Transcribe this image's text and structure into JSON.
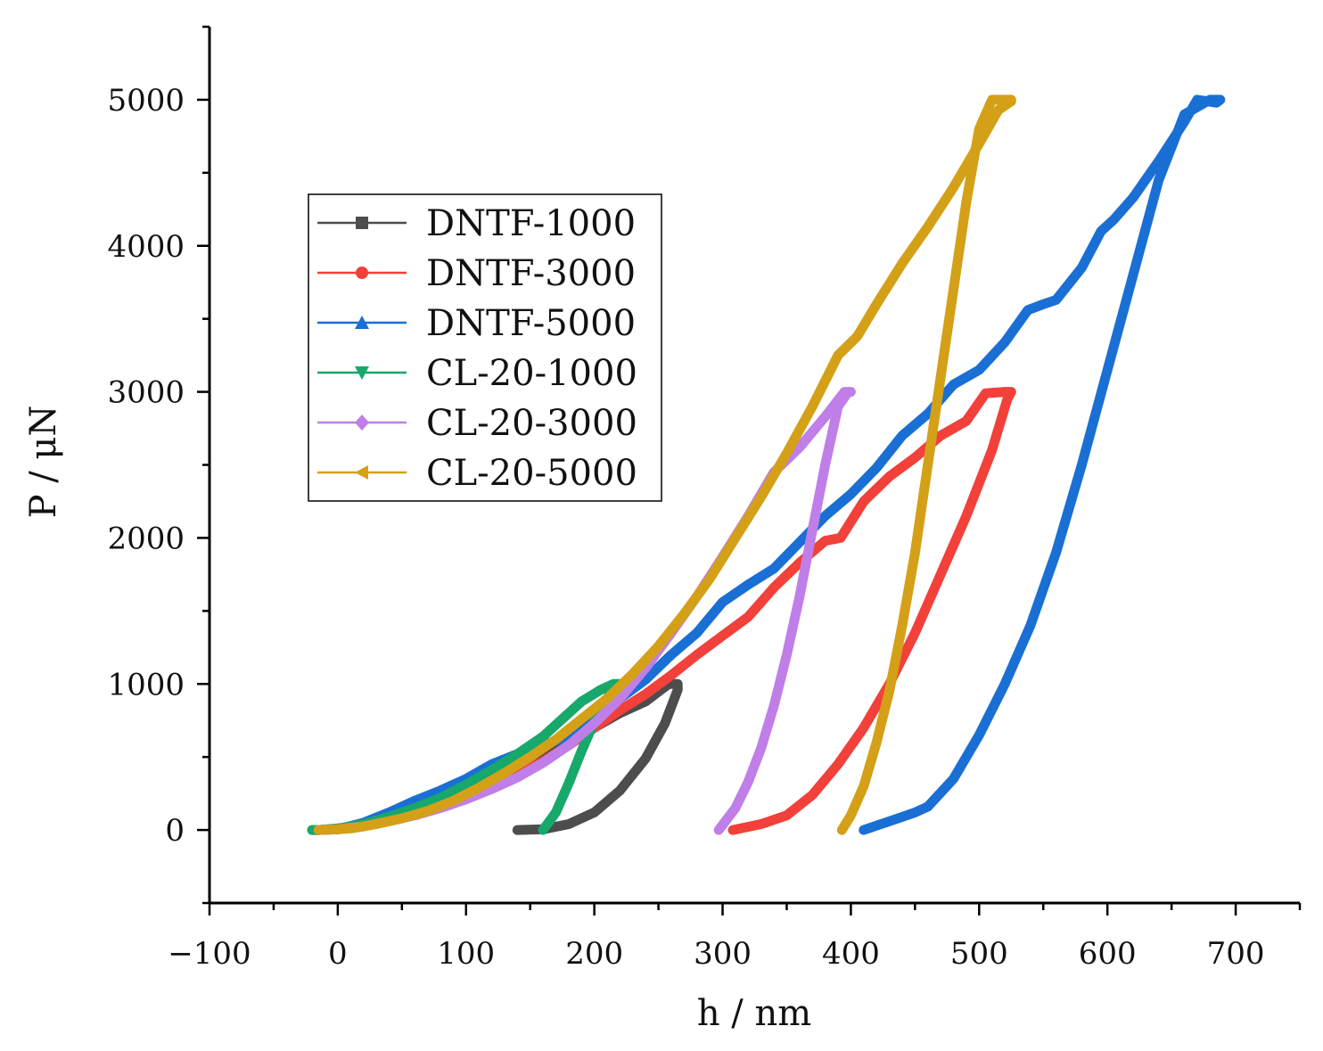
{
  "chart_data": {
    "type": "line",
    "xlabel": "h  /  nm",
    "ylabel": "P  /  μN",
    "xlim": [
      -100,
      750
    ],
    "ylim": [
      -500,
      5500
    ],
    "xticks": [
      -100,
      0,
      100,
      200,
      300,
      400,
      500,
      600,
      700
    ],
    "yticks": [
      0,
      1000,
      2000,
      3000,
      4000,
      5000
    ],
    "grid": false,
    "legend_position": "upper-left",
    "series": [
      {
        "name": "DNTF-1000",
        "color": "#4d4d4d",
        "marker": "square",
        "x": [
          140,
          160,
          180,
          200,
          220,
          240,
          255,
          265,
          265,
          258,
          240,
          220,
          200,
          180,
          160,
          140,
          120,
          100,
          80,
          60,
          40,
          20,
          0,
          -15,
          -20
        ],
        "y": [
          0,
          5,
          40,
          120,
          270,
          490,
          730,
          960,
          1000,
          1000,
          880,
          800,
          700,
          610,
          500,
          410,
          320,
          240,
          170,
          115,
          70,
          30,
          10,
          0,
          0
        ]
      },
      {
        "name": "DNTF-3000",
        "color": "#f2403a",
        "marker": "circle",
        "x": [
          308,
          330,
          350,
          370,
          390,
          410,
          430,
          450,
          470,
          490,
          510,
          522,
          525,
          520,
          505,
          490,
          470,
          450,
          430,
          410,
          392,
          380,
          360,
          340,
          320,
          300,
          280,
          260,
          240,
          220,
          200,
          180,
          160,
          140,
          120,
          100,
          80,
          60,
          40,
          20,
          0,
          -15
        ],
        "y": [
          0,
          40,
          100,
          240,
          450,
          700,
          1000,
          1350,
          1750,
          2150,
          2600,
          2950,
          3000,
          3000,
          2990,
          2800,
          2700,
          2550,
          2420,
          2250,
          2000,
          1980,
          1830,
          1660,
          1460,
          1330,
          1200,
          1060,
          930,
          820,
          700,
          580,
          470,
          380,
          300,
          240,
          170,
          110,
          65,
          25,
          5,
          0
        ]
      },
      {
        "name": "DNTF-5000",
        "color": "#1a6fd4",
        "marker": "triangle",
        "x": [
          410,
          430,
          450,
          460,
          480,
          500,
          520,
          540,
          560,
          580,
          600,
          620,
          640,
          660,
          680,
          688,
          685,
          670,
          660,
          640,
          620,
          605,
          595,
          580,
          560,
          550,
          538,
          520,
          500,
          480,
          460,
          440,
          420,
          400,
          380,
          360,
          340,
          320,
          300,
          280,
          260,
          240,
          220,
          200,
          180,
          160,
          140,
          120,
          100,
          80,
          60,
          40,
          20,
          0,
          -15
        ],
        "y": [
          0,
          60,
          120,
          160,
          350,
          650,
          1000,
          1400,
          1900,
          2500,
          3150,
          3800,
          4450,
          4900,
          5000,
          5000,
          4980,
          5000,
          4850,
          4580,
          4330,
          4180,
          4100,
          3850,
          3630,
          3600,
          3560,
          3340,
          3150,
          3050,
          2850,
          2700,
          2480,
          2300,
          2150,
          1970,
          1790,
          1680,
          1560,
          1350,
          1200,
          1030,
          900,
          760,
          640,
          580,
          520,
          450,
          350,
          270,
          200,
          120,
          50,
          5,
          0
        ]
      },
      {
        "name": "CL-20-1000",
        "color": "#17a86b",
        "marker": "triangle-down",
        "x": [
          160,
          170,
          180,
          190,
          200,
          210,
          218,
          220,
          215,
          205,
          190,
          175,
          160,
          140,
          120,
          100,
          80,
          60,
          40,
          20,
          0,
          -15,
          -20
        ],
        "y": [
          0,
          120,
          320,
          540,
          740,
          900,
          1000,
          1000,
          1000,
          960,
          880,
          760,
          640,
          520,
          410,
          310,
          220,
          150,
          90,
          40,
          10,
          0,
          0
        ]
      },
      {
        "name": "CL-20-3000",
        "color": "#c07ee8",
        "marker": "diamond",
        "x": [
          297,
          310,
          320,
          330,
          340,
          350,
          360,
          370,
          380,
          390,
          398,
          400,
          395,
          380,
          360,
          340,
          320,
          300,
          280,
          260,
          240,
          220,
          200,
          180,
          160,
          140,
          120,
          100,
          80,
          60,
          40,
          20,
          0,
          -15
        ],
        "y": [
          0,
          150,
          330,
          560,
          850,
          1200,
          1600,
          2050,
          2500,
          2900,
          3000,
          3000,
          3000,
          2830,
          2620,
          2450,
          2150,
          1870,
          1600,
          1350,
          1110,
          900,
          730,
          580,
          460,
          360,
          280,
          210,
          150,
          100,
          60,
          25,
          5,
          0
        ]
      },
      {
        "name": "CL-20-5000",
        "color": "#d4a017",
        "marker": "triangle-left",
        "x": [
          393,
          400,
          410,
          420,
          430,
          440,
          450,
          460,
          470,
          480,
          490,
          500,
          510,
          520,
          525,
          525,
          515,
          500,
          480,
          460,
          440,
          420,
          405,
          390,
          370,
          350,
          330,
          310,
          290,
          270,
          250,
          230,
          210,
          190,
          170,
          150,
          130,
          110,
          90,
          70,
          50,
          30,
          10,
          0,
          -15
        ],
        "y": [
          0,
          100,
          300,
          600,
          950,
          1400,
          1900,
          2500,
          3100,
          3700,
          4300,
          4800,
          5000,
          5000,
          5000,
          4990,
          4930,
          4700,
          4400,
          4130,
          3880,
          3600,
          3380,
          3250,
          2900,
          2580,
          2280,
          2000,
          1720,
          1480,
          1260,
          1070,
          900,
          760,
          620,
          500,
          390,
          290,
          200,
          130,
          80,
          40,
          10,
          5,
          0
        ]
      }
    ]
  }
}
